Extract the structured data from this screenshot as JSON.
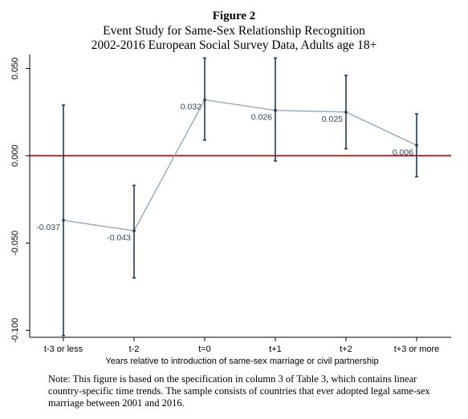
{
  "figure": {
    "heading": "Figure 2",
    "title": "Event Study for Same-Sex Relationship Recognition",
    "subtitle": "2002-2016 European Social Survey Data, Adults age 18+"
  },
  "chart_data": {
    "type": "line",
    "categories": [
      "t-3 or less",
      "t-2",
      "t=0",
      "t+1",
      "t+2",
      "t+3 or more"
    ],
    "series": [
      {
        "values": [
          -0.037,
          -0.043,
          0.032,
          0.026,
          0.025,
          0.006
        ],
        "labels": [
          "-0.037",
          "-0.043",
          "0.032",
          "0.026",
          "0.025",
          "0.006"
        ],
        "ci_low": [
          -0.103,
          -0.07,
          0.009,
          -0.003,
          0.004,
          -0.012
        ],
        "ci_high": [
          0.029,
          -0.017,
          0.056,
          0.056,
          0.046,
          0.024
        ]
      }
    ],
    "xlabel": "Years relative to introduction of same-sex marriage or civil partnership",
    "ylabel": "",
    "ylim": [
      -0.104,
      0.058
    ],
    "yticks": [
      -0.1,
      -0.05,
      0.0,
      0.05
    ],
    "ytick_labels": [
      "-0.100",
      "-0.050",
      "0.000",
      "0.050"
    ],
    "reference_line": 0,
    "grid": false,
    "colors": {
      "line": "#8aa4bd",
      "error_bar": "#1f3b55",
      "reference": "#a01010",
      "label": "#2b4a66",
      "axis": "#000000"
    }
  },
  "note": {
    "text": "Note: This figure is based on the specification in column 3 of Table 3, which contains linear country-specific time trends. The sample consists of countries that ever adopted legal same-sex marriage between 2001 and 2016."
  }
}
